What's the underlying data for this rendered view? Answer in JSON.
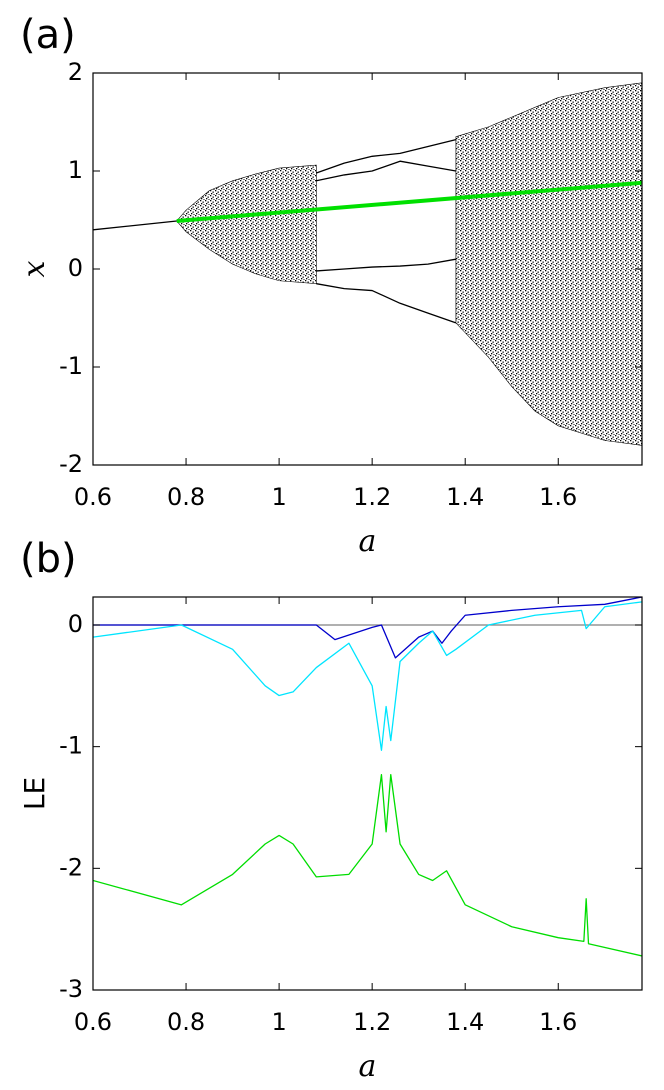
{
  "chart_data": [
    {
      "type": "bifurcation",
      "panel_label": "(a)",
      "xlabel": "a",
      "ylabel": "x",
      "xlim": [
        0.6,
        1.78
      ],
      "ylim": [
        -2,
        2
      ],
      "xticks": [
        0.6,
        0.8,
        1,
        1.2,
        1.4,
        1.6
      ],
      "yticks": [
        -2,
        -1,
        0,
        1,
        2
      ],
      "bands": [
        {
          "color": "#000000",
          "x": [
            0.78,
            0.8,
            0.85,
            0.9,
            0.95,
            1.0,
            1.08
          ],
          "upper": [
            0.49,
            0.6,
            0.8,
            0.9,
            0.97,
            1.03,
            1.06
          ],
          "lower": [
            0.49,
            0.38,
            0.2,
            0.05,
            -0.05,
            -0.12,
            -0.15
          ]
        },
        {
          "color": "#000000",
          "x": [
            1.38,
            1.45,
            1.5,
            1.55,
            1.6,
            1.7,
            1.78
          ],
          "upper": [
            1.35,
            1.45,
            1.55,
            1.65,
            1.75,
            1.85,
            1.9
          ],
          "lower": [
            -0.55,
            -0.9,
            -1.2,
            -1.45,
            -1.6,
            -1.75,
            -1.8
          ]
        }
      ],
      "series": [
        {
          "color": "#000000",
          "x": [
            0.6,
            0.78
          ],
          "values": [
            0.4,
            0.49
          ]
        },
        {
          "color": "#000000",
          "x": [
            1.08,
            1.14,
            1.2,
            1.26,
            1.32,
            1.38
          ],
          "values": [
            0.98,
            1.08,
            1.15,
            1.18,
            1.25,
            1.32
          ]
        },
        {
          "color": "#000000",
          "x": [
            1.08,
            1.14,
            1.2,
            1.26,
            1.32,
            1.38
          ],
          "values": [
            0.9,
            0.96,
            1.0,
            1.1,
            1.05,
            1.0
          ]
        },
        {
          "color": "#000000",
          "x": [
            1.08,
            1.14,
            1.2,
            1.26,
            1.32,
            1.38
          ],
          "values": [
            -0.02,
            0.0,
            0.02,
            0.03,
            0.05,
            0.1
          ]
        },
        {
          "color": "#000000",
          "x": [
            1.08,
            1.14,
            1.2,
            1.26,
            1.32,
            1.38
          ],
          "values": [
            -0.15,
            -0.2,
            -0.22,
            -0.35,
            -0.45,
            -0.55
          ]
        },
        {
          "color": "#00e000",
          "width": 4,
          "x": [
            0.78,
            1.78
          ],
          "values": [
            0.49,
            0.88
          ]
        }
      ]
    },
    {
      "type": "line",
      "panel_label": "(b)",
      "xlabel": "a",
      "ylabel": "LE",
      "xlim": [
        0.6,
        1.78
      ],
      "ylim": [
        -3,
        0.23
      ],
      "xticks": [
        0.6,
        0.8,
        1,
        1.2,
        1.4,
        1.6
      ],
      "yticks": [
        -3,
        -2,
        -1,
        0
      ],
      "hline": 0,
      "hline_color": "#808080",
      "series": [
        {
          "color": "#0000cc",
          "x": [
            0.6,
            0.8,
            1.08,
            1.12,
            1.2,
            1.22,
            1.25,
            1.3,
            1.33,
            1.35,
            1.37,
            1.4,
            1.5,
            1.6,
            1.7,
            1.78
          ],
          "values": [
            0,
            0,
            0,
            -0.12,
            -0.02,
            0,
            -0.27,
            -0.1,
            -0.05,
            -0.15,
            -0.05,
            0.08,
            0.12,
            0.15,
            0.17,
            0.23
          ]
        },
        {
          "color": "#00e5ff",
          "x": [
            0.6,
            0.79,
            0.9,
            0.97,
            1.0,
            1.03,
            1.08,
            1.15,
            1.2,
            1.22,
            1.23,
            1.24,
            1.26,
            1.3,
            1.33,
            1.36,
            1.38,
            1.45,
            1.55,
            1.65,
            1.66,
            1.7,
            1.78
          ],
          "values": [
            -0.1,
            0,
            -0.2,
            -0.5,
            -0.58,
            -0.55,
            -0.35,
            -0.15,
            -0.5,
            -1.03,
            -0.67,
            -0.95,
            -0.3,
            -0.15,
            -0.05,
            -0.25,
            -0.2,
            0,
            0.08,
            0.12,
            -0.03,
            0.15,
            0.19
          ]
        },
        {
          "color": "#00dd00",
          "x": [
            0.6,
            0.79,
            0.9,
            0.97,
            1.0,
            1.03,
            1.08,
            1.15,
            1.2,
            1.22,
            1.23,
            1.24,
            1.26,
            1.3,
            1.33,
            1.36,
            1.4,
            1.5,
            1.6,
            1.655,
            1.66,
            1.665,
            1.78
          ],
          "values": [
            -2.1,
            -2.3,
            -2.05,
            -1.8,
            -1.73,
            -1.8,
            -2.07,
            -2.05,
            -1.8,
            -1.23,
            -1.7,
            -1.23,
            -1.8,
            -2.05,
            -2.1,
            -2.02,
            -2.3,
            -2.48,
            -2.57,
            -2.6,
            -2.25,
            -2.62,
            -2.72
          ]
        }
      ]
    }
  ]
}
